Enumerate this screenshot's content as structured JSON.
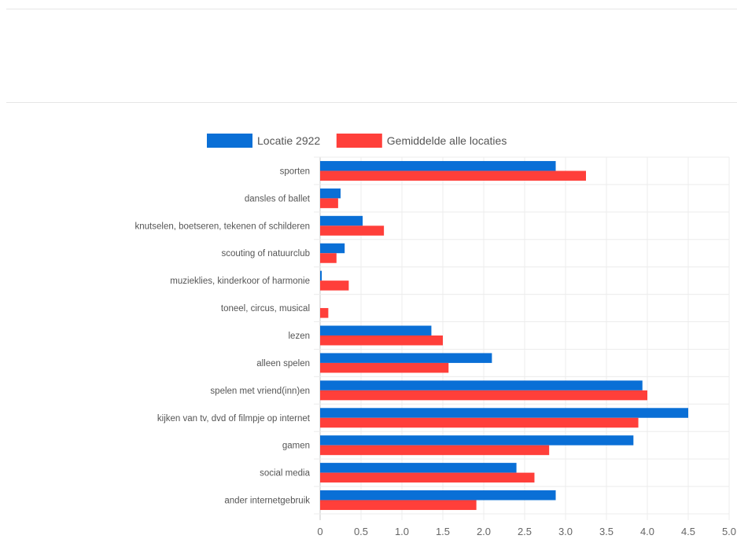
{
  "chart_data": {
    "type": "bar",
    "orientation": "horizontal",
    "title": "",
    "xlabel": "",
    "ylabel": "",
    "categories": [
      "sporten",
      "dansles of ballet",
      "knutselen, boetseren, tekenen of schilderen",
      "scouting of natuurclub",
      "muzieklies, kinderkoor of harmonie",
      "toneel, circus, musical",
      "lezen",
      "alleen spelen",
      "spelen met vriend(inn)en",
      "kijken van tv, dvd of filmpje op internet",
      "gamen",
      "social media",
      "ander internetgebruik"
    ],
    "series": [
      {
        "name": "Locatie 2922",
        "color": "#0a6fd6",
        "values": [
          2.88,
          0.25,
          0.52,
          0.3,
          0.02,
          0.0,
          1.36,
          2.1,
          3.94,
          4.5,
          3.83,
          2.4,
          2.88
        ]
      },
      {
        "name": "Gemiddelde alle locaties",
        "color": "#ff3f3a",
        "values": [
          3.25,
          0.22,
          0.78,
          0.2,
          0.35,
          0.1,
          1.5,
          1.57,
          4.0,
          3.89,
          2.8,
          2.62,
          1.91
        ]
      }
    ],
    "xlim": [
      0,
      5
    ],
    "xticks": [
      "0",
      "0.5",
      "1.0",
      "1.5",
      "2.0",
      "2.5",
      "3.0",
      "3.5",
      "4.0",
      "4.5",
      "5.0"
    ],
    "grid": true,
    "legend_position": "top"
  }
}
